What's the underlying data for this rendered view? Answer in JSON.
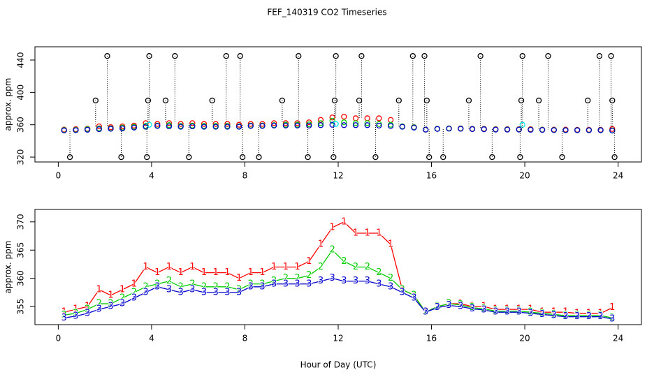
{
  "title": "FEF_140319  CO2 Timeseries",
  "chart_data": [
    {
      "type": "scatter",
      "y_label": "approx. ppm",
      "xlim": [
        -1,
        25
      ],
      "ylim": [
        314,
        456.4
      ],
      "xticks": [
        0,
        4,
        8,
        12,
        16,
        20,
        24
      ],
      "yticks": [
        320,
        360,
        400,
        440
      ],
      "x": [
        0.25,
        0.75,
        1.25,
        1.75,
        2.25,
        2.75,
        3.25,
        3.75,
        4.25,
        4.75,
        5.25,
        5.75,
        6.25,
        6.75,
        7.25,
        7.75,
        8.25,
        8.75,
        9.25,
        9.75,
        10.25,
        10.75,
        11.25,
        11.75,
        12.25,
        12.75,
        13.25,
        13.75,
        14.25,
        14.75,
        15.25,
        15.75,
        16.25,
        16.75,
        17.25,
        17.75,
        18.25,
        18.75,
        19.25,
        19.75,
        20.25,
        20.75,
        21.25,
        21.75,
        22.25,
        22.75,
        23.25,
        23.75
      ],
      "series": [
        {
          "color": "#ff0000",
          "values": [
            354,
            354.5,
            355,
            358,
            357,
            358,
            359,
            362,
            361,
            362,
            361,
            362,
            361,
            361,
            361,
            360,
            361,
            361,
            362,
            362,
            362,
            363,
            366,
            369,
            370,
            368,
            368,
            368,
            366,
            358,
            357,
            354,
            355,
            355.5,
            355.5,
            355,
            355,
            354.5,
            354.5,
            354.5,
            354.5,
            354,
            354,
            354,
            353.8,
            353.8,
            353.8,
            354.8
          ]
        },
        {
          "color": "#00cd00",
          "values": [
            353.5,
            353.8,
            354.5,
            355.5,
            355.5,
            356.5,
            357.5,
            358.5,
            359,
            359.5,
            358.5,
            359,
            358.5,
            358.5,
            358.5,
            358,
            359,
            359,
            359.5,
            360,
            360,
            360.5,
            362,
            365,
            363,
            362,
            362,
            361,
            360,
            358,
            357,
            354,
            355,
            355.5,
            355.3,
            354.8,
            354.6,
            354.2,
            354.2,
            354.2,
            354,
            353.8,
            353.6,
            353.4,
            353.4,
            353.4,
            353.4,
            353
          ]
        },
        {
          "color": "#0000cd",
          "values": [
            353,
            353.3,
            353.8,
            354.5,
            355,
            355.5,
            356.5,
            357.5,
            358.5,
            358,
            357.5,
            358,
            357.5,
            357.5,
            357.5,
            357.5,
            358.5,
            358.5,
            359,
            359,
            359,
            359,
            359.5,
            360,
            359.5,
            359.5,
            359.5,
            359,
            358.5,
            357.5,
            356.5,
            354,
            354.8,
            355.2,
            355,
            354.6,
            354.4,
            354,
            354,
            354,
            353.8,
            353.6,
            353.4,
            353.2,
            353.2,
            353.2,
            353.2,
            352.8
          ]
        },
        {
          "color": "#00e5ee",
          "x": [
            3.9,
            11.9,
            19.9
          ],
          "values": [
            360,
            361,
            360
          ]
        },
        {
          "color": "#000000",
          "dropline": true,
          "x": [
            0.5,
            1.6,
            2.1,
            2.7,
            3.8,
            3.85,
            3.9,
            4.6,
            5.0,
            5.6,
            6.6,
            7.2,
            7.8,
            7.9,
            8.6,
            9.6,
            10.3,
            10.7,
            11.8,
            11.85,
            11.9,
            12.9,
            13.0,
            13.6,
            14.6,
            15.2,
            15.7,
            15.8,
            15.9,
            16.5,
            17.6,
            18.1,
            18.6,
            19.8,
            19.85,
            19.9,
            20.6,
            21.0,
            21.6,
            22.7,
            23.2,
            23.7,
            23.75,
            23.85
          ],
          "values": [
            320,
            390,
            445,
            320,
            320,
            390,
            445,
            390,
            445,
            320,
            390,
            445,
            445,
            320,
            320,
            390,
            445,
            320,
            320,
            390,
            445,
            390,
            445,
            320,
            390,
            445,
            445,
            390,
            320,
            320,
            390,
            445,
            320,
            320,
            390,
            445,
            390,
            445,
            320,
            390,
            445,
            445,
            390,
            320
          ]
        }
      ]
    },
    {
      "type": "line",
      "y_label": "approx. ppm",
      "x_label": "Hour of Day (UTC)",
      "xlim": [
        -1,
        25
      ],
      "ylim": [
        351.8,
        372.2
      ],
      "xticks": [
        0,
        4,
        8,
        12,
        16,
        20,
        24
      ],
      "yticks": [
        355,
        360,
        365,
        370
      ],
      "x": [
        0.25,
        0.75,
        1.25,
        1.75,
        2.25,
        2.75,
        3.25,
        3.75,
        4.25,
        4.75,
        5.25,
        5.75,
        6.25,
        6.75,
        7.25,
        7.75,
        8.25,
        8.75,
        9.25,
        9.75,
        10.25,
        10.75,
        11.25,
        11.75,
        12.25,
        12.75,
        13.25,
        13.75,
        14.25,
        14.75,
        15.25,
        15.75,
        16.25,
        16.75,
        17.25,
        17.75,
        18.25,
        18.75,
        19.25,
        19.75,
        20.25,
        20.75,
        21.25,
        21.75,
        22.25,
        22.75,
        23.25,
        23.75
      ],
      "series": [
        {
          "marker": "1",
          "color": "#ff0000",
          "values": [
            354,
            354.5,
            355,
            358,
            357,
            358,
            359,
            362,
            361,
            362,
            361,
            362,
            361,
            361,
            361,
            360,
            361,
            361,
            362,
            362,
            362,
            363,
            366,
            369,
            370,
            368,
            368,
            368,
            366,
            358,
            357,
            354,
            355,
            355.5,
            355.5,
            355,
            355,
            354.5,
            354.5,
            354.5,
            354.5,
            354,
            354,
            354,
            353.8,
            353.8,
            353.8,
            354.8
          ]
        },
        {
          "marker": "2",
          "color": "#00cd00",
          "values": [
            353.5,
            353.8,
            354.5,
            355.5,
            355.5,
            356.5,
            357.5,
            358.5,
            359,
            359.5,
            358.5,
            359,
            358.5,
            358.5,
            358.5,
            358,
            359,
            359,
            359.5,
            360,
            360,
            360.5,
            362,
            365,
            363,
            362,
            362,
            361,
            360,
            358,
            357,
            354,
            355,
            355.5,
            355.3,
            354.8,
            354.6,
            354.2,
            354.2,
            354.2,
            354,
            353.8,
            353.6,
            353.4,
            353.4,
            353.4,
            353.4,
            353
          ]
        },
        {
          "marker": "3",
          "color": "#0000cd",
          "values": [
            353,
            353.3,
            353.8,
            354.5,
            355,
            355.5,
            356.5,
            357.5,
            358.5,
            358,
            357.5,
            358,
            357.5,
            357.5,
            357.5,
            357.5,
            358.5,
            358.5,
            359,
            359,
            359,
            359,
            359.5,
            360,
            359.5,
            359.5,
            359.5,
            359,
            358.5,
            357.5,
            356.5,
            354,
            354.8,
            355.2,
            355,
            354.6,
            354.4,
            354,
            354,
            354,
            353.8,
            353.6,
            353.4,
            353.2,
            353.2,
            353.2,
            353.2,
            352.8
          ]
        }
      ]
    }
  ]
}
